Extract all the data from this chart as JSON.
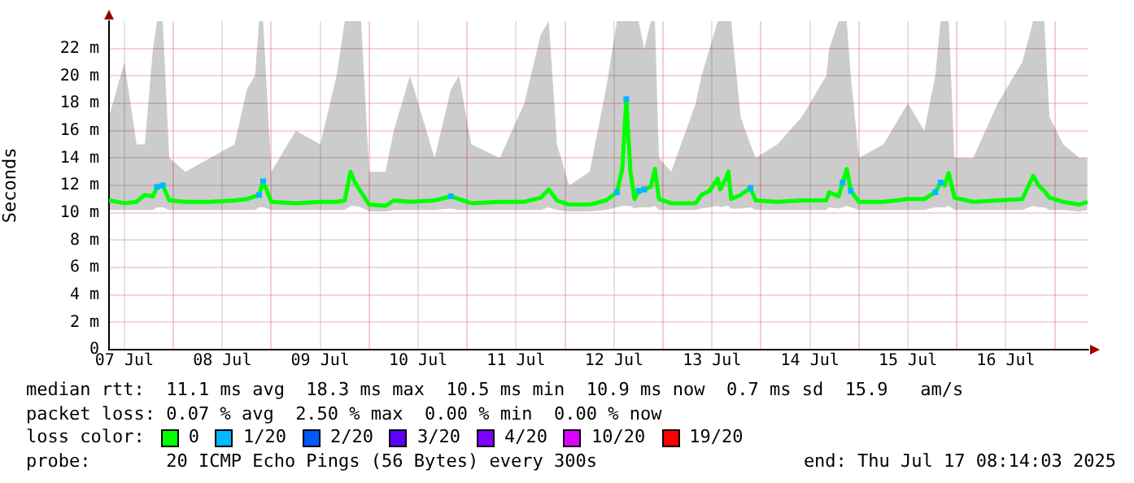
{
  "chart_data": {
    "type": "line",
    "ylabel": "Seconds",
    "xlim": [
      "2025-07-07T08:14",
      "2025-07-17T08:14"
    ],
    "xticks": [
      {
        "value": "2025-07-07T12:00",
        "label": "07 Jul"
      },
      {
        "value": "2025-07-08",
        "label": null
      },
      {
        "value": "2025-07-08T12:00",
        "label": "08 Jul"
      },
      {
        "value": "2025-07-09",
        "label": null
      },
      {
        "value": "2025-07-09T12:00",
        "label": "09 Jul"
      },
      {
        "value": "2025-07-10",
        "label": null
      },
      {
        "value": "2025-07-10T12:00",
        "label": "10 Jul"
      },
      {
        "value": "2025-07-11",
        "label": null
      },
      {
        "value": "2025-07-11T12:00",
        "label": "11 Jul"
      },
      {
        "value": "2025-07-12",
        "label": null
      },
      {
        "value": "2025-07-12T12:00",
        "label": "12 Jul"
      },
      {
        "value": "2025-07-13",
        "label": null
      },
      {
        "value": "2025-07-13T12:00",
        "label": "13 Jul"
      },
      {
        "value": "2025-07-14",
        "label": null
      },
      {
        "value": "2025-07-14T12:00",
        "label": "14 Jul"
      },
      {
        "value": "2025-07-15",
        "label": null
      },
      {
        "value": "2025-07-15T12:00",
        "label": "15 Jul"
      },
      {
        "value": "2025-07-16",
        "label": null
      },
      {
        "value": "2025-07-16T12:00",
        "label": "16 Jul"
      },
      {
        "value": "2025-07-17",
        "label": null
      }
    ],
    "ylim": [
      0,
      24
    ],
    "yticks": [
      0,
      {
        "value": 2,
        "label": "2 m"
      },
      {
        "value": 4,
        "label": "4 m"
      },
      {
        "value": 6,
        "label": "6 m"
      },
      {
        "value": 8,
        "label": "8 m"
      },
      {
        "value": 10,
        "label": "10 m"
      },
      {
        "value": 12,
        "label": "12 m"
      },
      {
        "value": 14,
        "label": "14 m"
      },
      {
        "value": 16,
        "label": "16 m"
      },
      {
        "value": 18,
        "label": "18 m"
      },
      {
        "value": 20,
        "label": "20 m"
      },
      {
        "value": 22,
        "label": "22 m"
      }
    ],
    "grid": true,
    "legend": "bottom",
    "legend_title": "loss color:",
    "series": [
      {
        "name": "0",
        "color": "#00ff00",
        "marker": "none",
        "x": [
          "2025-07-07T08:14",
          "2025-07-07T12:00",
          "2025-07-07T15:00",
          "2025-07-07T17:00",
          "2025-07-07T19:00",
          "2025-07-07T20:00",
          "2025-07-07T21:24",
          "2025-07-07T23:00",
          "2025-07-08T03:00",
          "2025-07-08T09:00",
          "2025-07-08T15:00",
          "2025-07-08T18:00",
          "2025-07-08T20:00",
          "2025-07-08T21:00",
          "2025-07-08T22:00",
          "2025-07-09T00:00",
          "2025-07-09T06:00",
          "2025-07-09T12:00",
          "2025-07-09T16:00",
          "2025-07-09T18:00",
          "2025-07-09T19:24",
          "2025-07-09T20:30",
          "2025-07-09T22:00",
          "2025-07-10T00:00",
          "2025-07-10T04:00",
          "2025-07-10T06:00",
          "2025-07-10T10:00",
          "2025-07-10T16:00",
          "2025-07-10T20:00",
          "2025-07-10T22:00",
          "2025-07-11T01:00",
          "2025-07-11T08:00",
          "2025-07-11T14:00",
          "2025-07-11T18:00",
          "2025-07-11T20:00",
          "2025-07-11T22:00",
          "2025-07-12T01:00",
          "2025-07-12T06:00",
          "2025-07-12T10:00",
          "2025-07-12T12:42",
          "2025-07-12T14:00",
          "2025-07-12T15:00",
          "2025-07-12T16:00",
          "2025-07-12T17:00",
          "2025-07-12T18:00",
          "2025-07-12T19:24",
          "2025-07-12T21:00",
          "2025-07-12T22:00",
          "2025-07-12T23:00",
          "2025-07-13T02:00",
          "2025-07-13T08:00",
          "2025-07-13T09:24",
          "2025-07-13T11:24",
          "2025-07-13T13:24",
          "2025-07-13T14:00",
          "2025-07-13T15:24",
          "2025-07-13T16:00",
          "2025-07-13T16:42",
          "2025-07-13T19:00",
          "2025-07-13T21:24",
          "2025-07-13T22:42",
          "2025-07-14T04:00",
          "2025-07-14T10:00",
          "2025-07-14T16:00",
          "2025-07-14T16:42",
          "2025-07-14T19:00",
          "2025-07-14T20:00",
          "2025-07-14T21:00",
          "2025-07-14T22:00",
          "2025-07-15T00:00",
          "2025-07-15T06:00",
          "2025-07-15T12:00",
          "2025-07-15T16:00",
          "2025-07-15T18:42",
          "2025-07-15T20:00",
          "2025-07-15T21:00",
          "2025-07-15T22:00",
          "2025-07-15T23:24",
          "2025-07-16T04:00",
          "2025-07-16T10:00",
          "2025-07-16T16:00",
          "2025-07-16T18:42",
          "2025-07-16T20:00",
          "2025-07-16T21:24",
          "2025-07-16T22:42",
          "2025-07-17T02:00",
          "2025-07-17T06:00",
          "2025-07-17T08:00"
        ],
        "values": [
          10.9,
          10.7,
          10.8,
          11.3,
          11.2,
          11.9,
          12,
          10.9,
          10.8,
          10.8,
          10.9,
          11,
          11.2,
          11.3,
          12.3,
          10.8,
          10.7,
          10.8,
          10.8,
          10.9,
          13,
          12.2,
          11.5,
          10.6,
          10.5,
          10.9,
          10.8,
          10.9,
          11.2,
          11,
          10.7,
          10.8,
          10.8,
          11.1,
          11.7,
          10.9,
          10.6,
          10.6,
          10.9,
          11.5,
          13.2,
          18.3,
          13,
          11,
          11.6,
          11.7,
          11.9,
          13.2,
          11,
          10.7,
          10.7,
          11.3,
          11.6,
          12.5,
          11.7,
          12.5,
          13,
          11,
          11.3,
          11.8,
          10.9,
          10.8,
          10.9,
          10.9,
          11.5,
          11.2,
          12.2,
          13.2,
          11.6,
          10.8,
          10.8,
          11,
          11,
          11.5,
          12.2,
          12,
          12.9,
          11.1,
          10.8,
          10.9,
          11,
          12.7,
          12,
          11.6,
          11.1,
          10.8,
          10.6,
          10.8
        ],
        "lower": [
          10.2,
          10.2,
          10.2,
          10.2,
          10.2,
          10.4,
          10.4,
          10.2,
          10.2,
          10.2,
          10.2,
          10.2,
          10.2,
          10.4,
          10.4,
          10.2,
          10.2,
          10.2,
          10.2,
          10.2,
          10.5,
          10.5,
          10.4,
          10.1,
          10.1,
          10.2,
          10.2,
          10.2,
          10.3,
          10.2,
          10.2,
          10.2,
          10.2,
          10.2,
          10.4,
          10.2,
          10.1,
          10.1,
          10.2,
          10.4,
          10.5,
          10.5,
          10.5,
          10.3,
          10.4,
          10.4,
          10.4,
          10.5,
          10.2,
          10.2,
          10.2,
          10.3,
          10.4,
          10.5,
          10.4,
          10.5,
          10.5,
          10.3,
          10.3,
          10.4,
          10.2,
          10.2,
          10.2,
          10.2,
          10.4,
          10.3,
          10.4,
          10.5,
          10.4,
          10.2,
          10.2,
          10.2,
          10.2,
          10.4,
          10.4,
          10.4,
          10.5,
          10.2,
          10.2,
          10.2,
          10.2,
          10.5,
          10.4,
          10.4,
          10.2,
          10.2,
          10.1,
          10.2
        ],
        "upper": [
          17,
          21,
          15,
          15,
          22,
          24,
          24,
          14,
          13,
          14,
          15,
          19,
          20,
          24,
          24,
          13,
          16,
          15,
          20,
          24,
          24,
          24,
          24,
          13,
          13,
          16,
          20,
          14,
          19,
          20,
          15,
          14,
          18,
          23,
          24,
          15,
          12,
          13,
          19,
          24,
          24,
          24,
          24,
          24,
          24,
          22,
          24,
          24,
          14,
          13,
          18,
          20,
          22,
          24,
          24,
          24,
          24,
          24,
          17,
          15,
          14,
          15,
          17,
          20,
          22,
          24,
          24,
          24,
          20,
          14,
          15,
          18,
          16,
          20,
          24,
          24,
          24,
          14,
          14,
          18,
          21,
          24,
          24,
          24,
          17,
          15,
          14,
          14
        ]
      },
      {
        "name": "1/20",
        "color": "#00b8ff",
        "type": "scatter",
        "marker": "square",
        "x": [
          "2025-07-07T20:00",
          "2025-07-07T21:24",
          "2025-07-08T21:00",
          "2025-07-08T22:00",
          "2025-07-10T20:00",
          "2025-07-12T12:42",
          "2025-07-12T15:00",
          "2025-07-12T18:00",
          "2025-07-12T19:24",
          "2025-07-13T21:24",
          "2025-07-14T20:00",
          "2025-07-14T22:00",
          "2025-07-15T18:42",
          "2025-07-15T20:00"
        ],
        "values": [
          11.9,
          12,
          11.3,
          12.3,
          11.2,
          11.5,
          18.3,
          11.6,
          11.7,
          11.8,
          12.2,
          11.6,
          11.5,
          12.2
        ]
      },
      {
        "name": "2/20",
        "color": "#0059ff",
        "type": "scatter"
      },
      {
        "name": "3/20",
        "color": "#5e00ff",
        "type": "scatter"
      },
      {
        "name": "4/20",
        "color": "#7e00ff",
        "type": "scatter"
      },
      {
        "name": "10/20",
        "color": "#dd00ff",
        "type": "scatter"
      },
      {
        "name": "19/20",
        "color": "#ff0000",
        "type": "scatter"
      }
    ],
    "annotations": [
      "median rtt:  11.1 ms avg  18.3 ms max  10.5 ms min  10.9 ms now  0.7 ms sd  15.9   am/s",
      "packet loss: 0.07 % avg  2.50 % max  0.00 % min  0.00 % now",
      "probe:       20 ICMP Echo Pings (56 Bytes) every 300s",
      "end: Thu Jul 17 08:14:03 2025"
    ]
  }
}
